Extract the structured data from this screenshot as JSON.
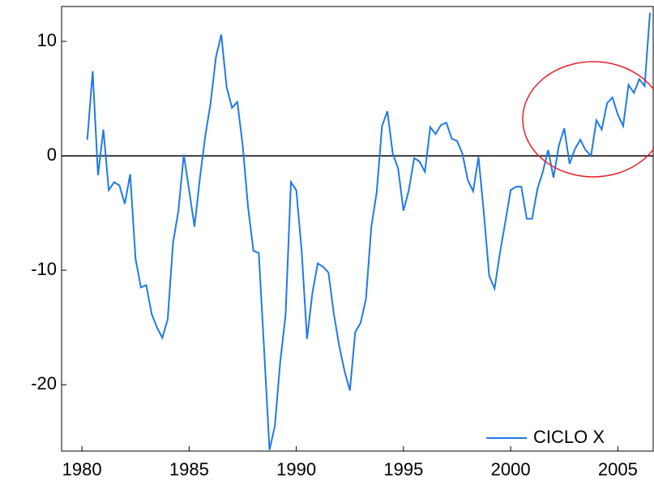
{
  "chart_data": {
    "type": "line",
    "series": [
      {
        "name": "CICLO X",
        "color": "#1f7ae8",
        "x": [
          1980.25,
          1980.5,
          1980.75,
          1981.0,
          1981.25,
          1981.5,
          1981.75,
          1982.0,
          1982.25,
          1982.5,
          1982.75,
          1983.0,
          1983.25,
          1983.5,
          1983.75,
          1984.0,
          1984.25,
          1984.5,
          1984.75,
          1985.0,
          1985.25,
          1985.5,
          1985.75,
          1986.0,
          1986.25,
          1986.5,
          1986.75,
          1987.0,
          1987.25,
          1987.5,
          1987.75,
          1988.0,
          1988.25,
          1988.5,
          1988.75,
          1989.0,
          1989.25,
          1989.5,
          1989.75,
          1990.0,
          1990.25,
          1990.5,
          1990.75,
          1991.0,
          1991.25,
          1991.5,
          1991.75,
          1992.0,
          1992.25,
          1992.5,
          1992.75,
          1993.0,
          1993.25,
          1993.5,
          1993.75,
          1994.0,
          1994.25,
          1994.5,
          1994.75,
          1995.0,
          1995.25,
          1995.5,
          1995.75,
          1996.0,
          1996.25,
          1996.5,
          1996.75,
          1997.0,
          1997.25,
          1997.5,
          1997.75,
          1998.0,
          1998.25,
          1998.5,
          1998.75,
          1999.0,
          1999.25,
          1999.5,
          1999.75,
          2000.0,
          2000.25,
          2000.5,
          2000.75,
          2001.0,
          2001.25,
          2001.5,
          2001.75,
          2002.0,
          2002.25,
          2002.5,
          2002.75,
          2003.0,
          2003.25,
          2003.5,
          2003.75,
          2004.0,
          2004.25,
          2004.5,
          2004.75,
          2005.0,
          2005.25,
          2005.5,
          2005.75,
          2006.0,
          2006.25,
          2006.5
        ],
        "values": [
          1.4,
          7.4,
          -1.7,
          2.3,
          -3.0,
          -2.3,
          -2.6,
          -4.2,
          -1.6,
          -9.0,
          -11.5,
          -11.3,
          -13.8,
          -15.0,
          -15.9,
          -14.3,
          -7.6,
          -4.8,
          0.1,
          -3.0,
          -6.2,
          -2.0,
          1.7,
          4.6,
          8.6,
          10.6,
          6.0,
          4.2,
          4.7,
          0.9,
          -4.5,
          -8.3,
          -8.5,
          -17.0,
          -25.7,
          -23.6,
          -18.0,
          -13.9,
          -2.3,
          -3.0,
          -8.3,
          -16.0,
          -12.0,
          -9.4,
          -9.7,
          -10.2,
          -13.8,
          -16.6,
          -18.8,
          -20.5,
          -15.4,
          -14.6,
          -12.5,
          -6.2,
          -3.2,
          2.6,
          3.9,
          0.2,
          -1.1,
          -4.8,
          -3.0,
          -0.2,
          -0.5,
          -1.4,
          2.5,
          1.9,
          2.7,
          2.9,
          1.5,
          1.3,
          0.2,
          -2.1,
          -3.1,
          -0.1,
          -5.0,
          -10.5,
          -11.6,
          -8.5,
          -5.8,
          -3.0,
          -2.7,
          -2.7,
          -5.5,
          -5.5,
          -2.9,
          -1.4,
          0.5,
          -1.9,
          0.9,
          2.4,
          -0.7,
          0.6,
          1.4,
          0.5,
          0.0,
          3.1,
          2.3,
          4.6,
          5.1,
          3.6,
          2.6,
          6.2,
          5.5,
          6.7,
          6.1,
          12.5
        ]
      }
    ],
    "xlim": [
      1979.05,
      2006.65
    ],
    "xticks": [
      1980,
      1985,
      1990,
      1995,
      2000,
      2005
    ],
    "ylim": [
      -25.8,
      13.05
    ],
    "yticks": [
      -20,
      -10,
      0,
      10
    ],
    "legend": "lower right"
  }
}
